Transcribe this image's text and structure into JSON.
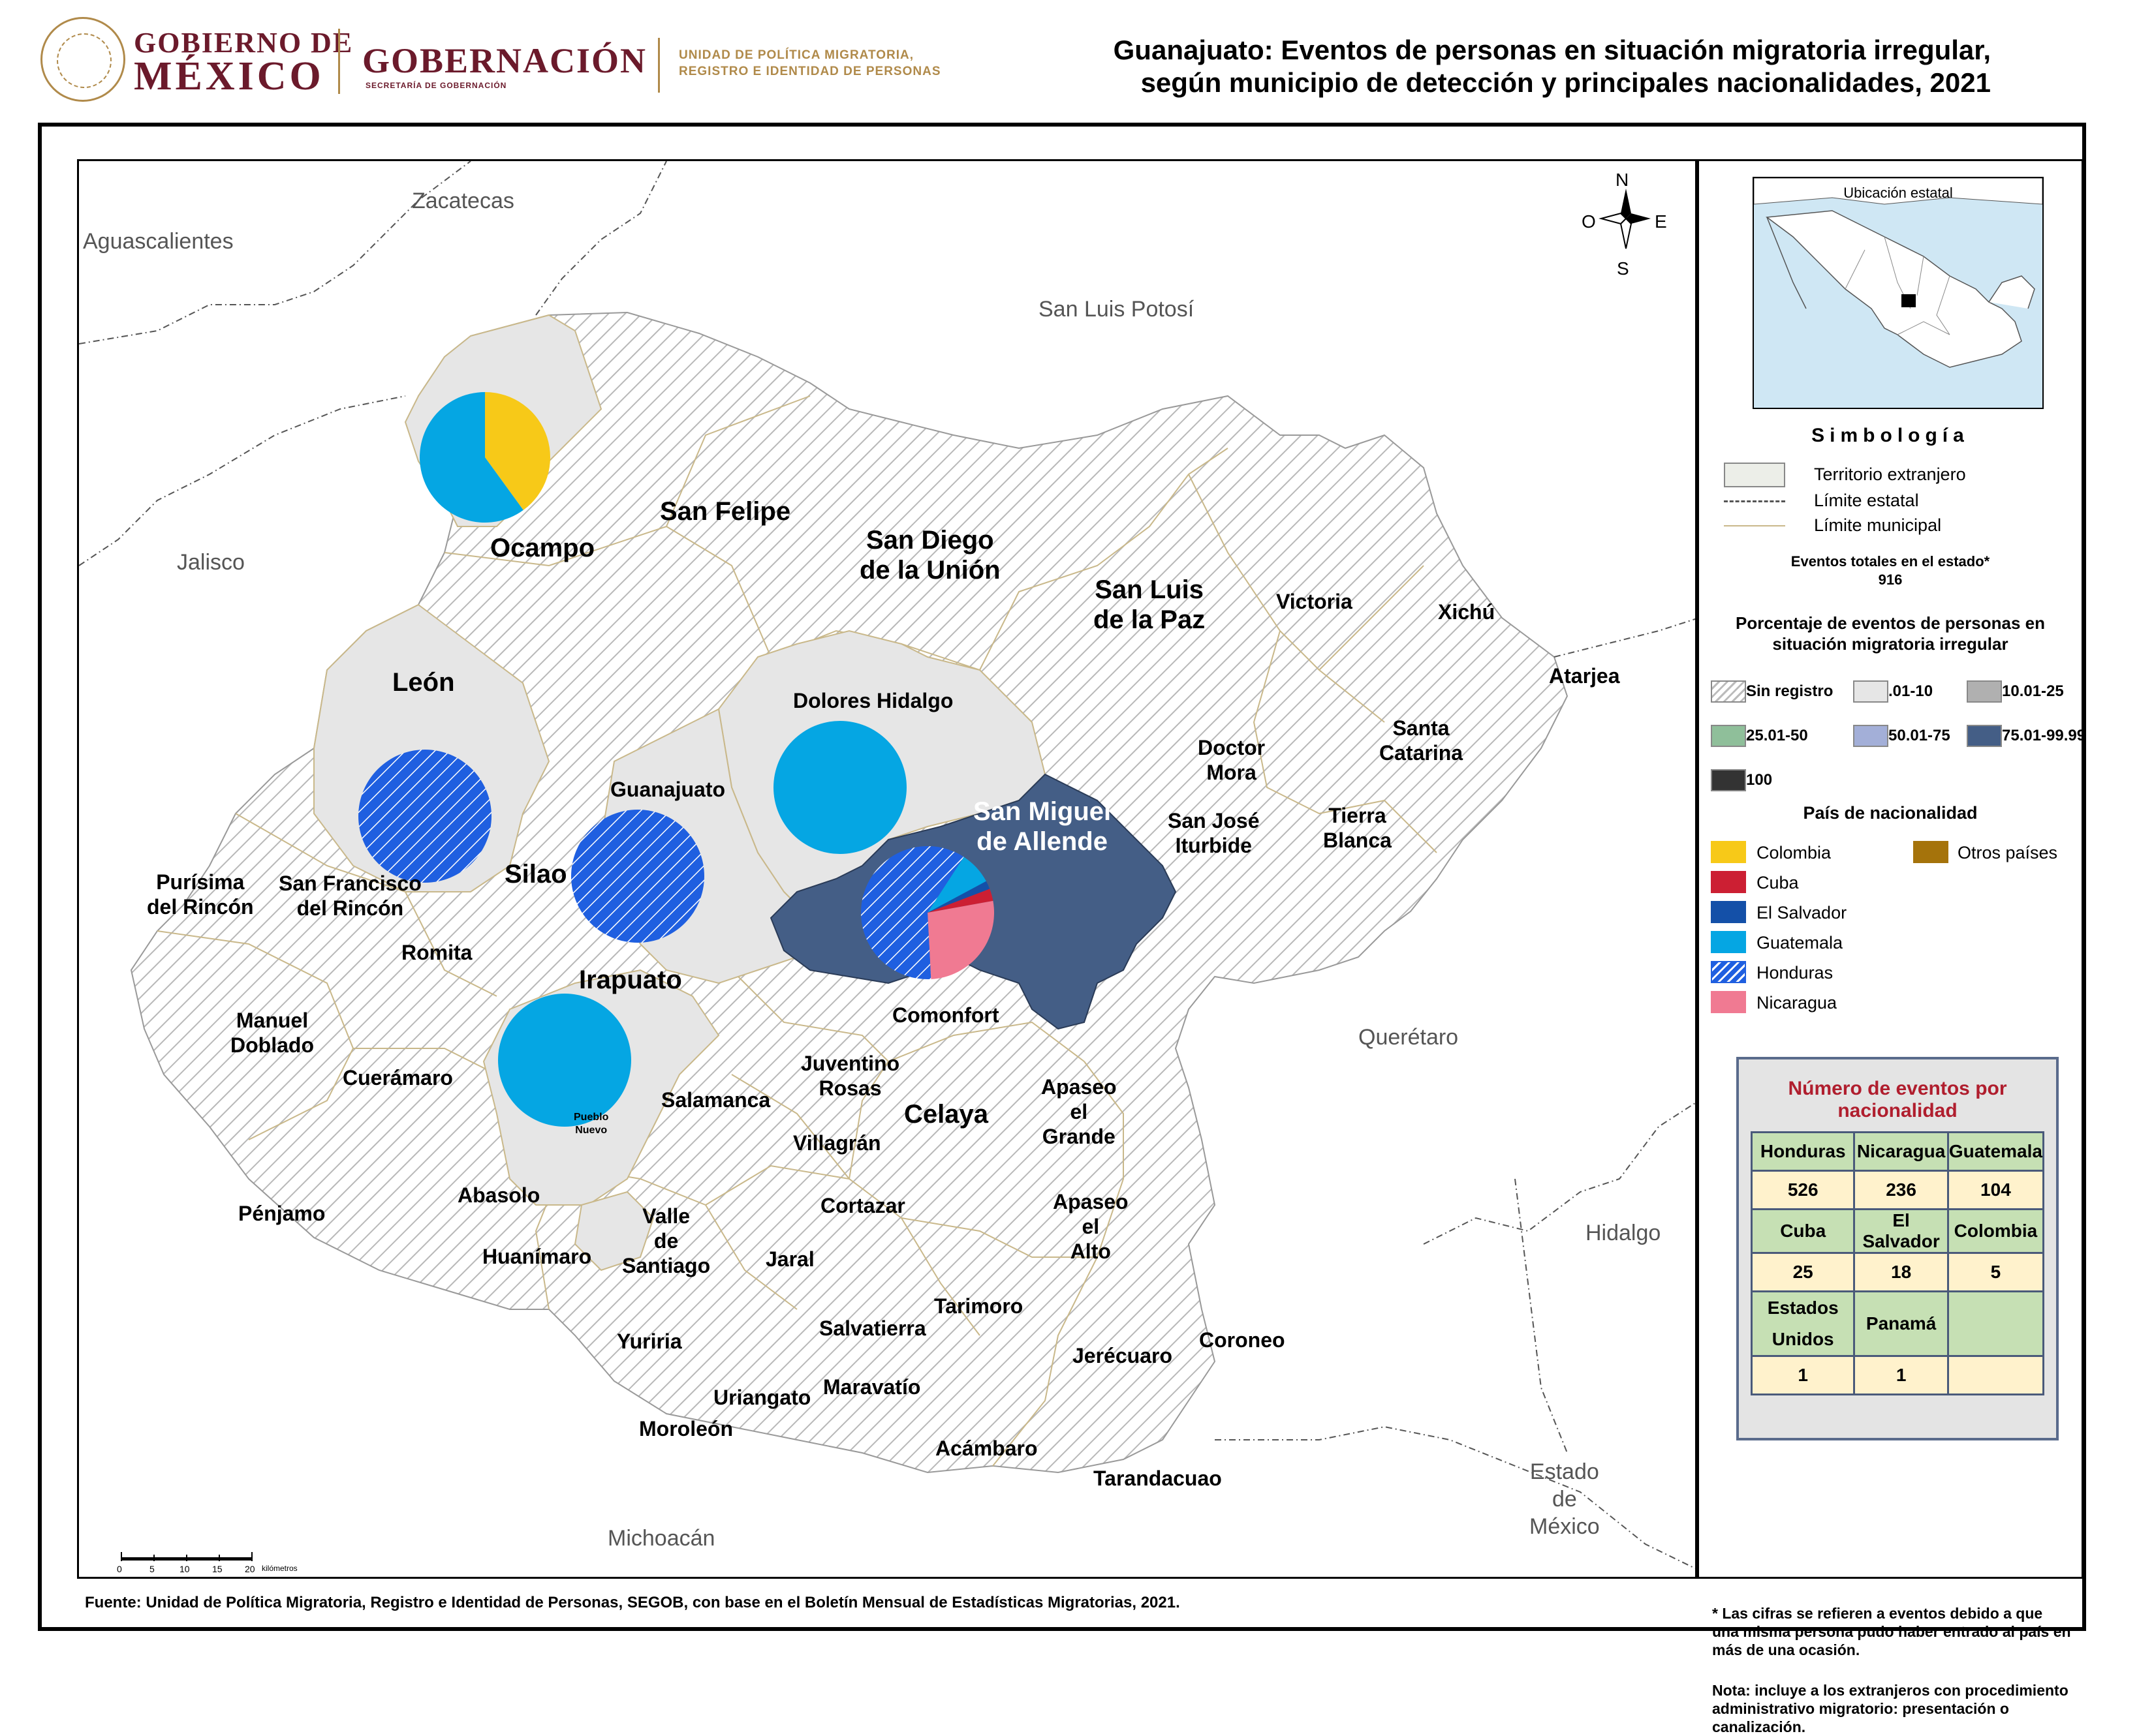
{
  "header": {
    "gob_line1": "GOBIERNO DE",
    "gob_line2": "MÉXICO",
    "gobernacion": "GOBERNACIÓN",
    "gobernacion_sub": "SECRETARÍA DE GOBERNACIÓN",
    "upm_line1": "UNIDAD DE POLÍTICA MIGRATORIA,",
    "upm_line2": "REGISTRO E IDENTIDAD DE PERSONAS",
    "title_line1": "Guanajuato: Eventos de personas en situación migratoria irregular,",
    "title_line2": "según municipio de detección y principales nacionalidades, 2021"
  },
  "compass": {
    "n": "N",
    "s": "S",
    "e": "E",
    "o": "O"
  },
  "states": {
    "zacatecas": "Zacatecas",
    "aguascalientes": "Aguascalientes",
    "slp": "San Luis Potosí",
    "jalisco": "Jalisco",
    "queretaro": "Querétaro",
    "hidalgo": "Hidalgo",
    "michoacan": "Michoacán",
    "edomex1": "Estado",
    "edomex2": "de",
    "edomex3": "México"
  },
  "municipalities": {
    "ocampo": "Ocampo",
    "san_felipe": "San Felipe",
    "sdu1": "San Diego",
    "sdu2": "de la Unión",
    "slpaz1": "San Luis",
    "slpaz2": "de la Paz",
    "victoria": "Victoria",
    "xichu": "Xichú",
    "atarjea": "Atarjea",
    "leon": "León",
    "dolores": "Dolores Hidalgo",
    "guanajuato": "Guanajuato",
    "sma1": "San Miguel",
    "sma2": "de Allende",
    "doctor1": "Doctor",
    "doctor2": "Mora",
    "sc1": "Santa",
    "sc2": "Catarina",
    "sji1": "San José",
    "sji2": "Iturbide",
    "tb1": "Tierra",
    "tb2": "Blanca",
    "purisima1": "Purísima",
    "purisima2": "del Rincón",
    "sfr1": "San Francisco",
    "sfr2": "del Rincón",
    "silao": "Silao",
    "romita": "Romita",
    "irapuato": "Irapuato",
    "md1": "Manuel",
    "md2": "Doblado",
    "cueramaro": "Cuerámaro",
    "comonfort": "Comonfort",
    "jr1": "Juventino",
    "jr2": "Rosas",
    "salamanca": "Salamanca",
    "celaya": "Celaya",
    "ag1": "Apaseo",
    "ag2": "el",
    "ag3": "Grande",
    "villagran": "Villagrán",
    "pueblo1": "Pueblo",
    "pueblo2": "Nuevo",
    "penjamo": "Pénjamo",
    "abasolo": "Abasolo",
    "vs1": "Valle",
    "vs2": "de",
    "vs3": "Santiago",
    "cortazar": "Cortazar",
    "aa1": "Apaseo",
    "aa2": "el",
    "aa3": "Alto",
    "huanimaro": "Huanímaro",
    "jaral": "Jaral",
    "tarimoro": "Tarimoro",
    "yuriria": "Yuriria",
    "salvatierra": "Salvatierra",
    "jerecuaro": "Jerécuaro",
    "coroneo": "Coroneo",
    "uriangato": "Uriangato",
    "maravatio": "Maravatío",
    "moroleon": "Moroleón",
    "acambaro": "Acámbaro",
    "tarandacuao": "Tarandacuao"
  },
  "scale": {
    "ticks": [
      "0",
      "5",
      "10",
      "15",
      "20"
    ],
    "unit": "kilómetros"
  },
  "inset": {
    "title": "Ubicación estatal"
  },
  "legend": {
    "simbologia": "Simbología",
    "territorio": "Territorio extranjero",
    "limite_estatal": "Límite estatal",
    "limite_municipal": "Límite municipal",
    "total_label": "Eventos totales en el estado*",
    "total_value": "916",
    "pct_title1": "Porcentaje de eventos de personas en",
    "pct_title2": "situación migratoria irregular",
    "pct_classes": [
      {
        "label": "Sin registro",
        "color": "hatch"
      },
      {
        "label": ".01-10",
        "color": "#e6e6e6"
      },
      {
        "label": "10.01-25",
        "color": "#b0b0b0"
      },
      {
        "label": "25.01-50",
        "color": "#8fbf9a"
      },
      {
        "label": "50.01-75",
        "color": "#a3afd8"
      },
      {
        "label": "75.01-99.99",
        "color": "#445e86"
      },
      {
        "label": "100",
        "color": "#333333"
      }
    ],
    "nat_title": "País de nacionalidad",
    "nationalities": [
      {
        "label": "Colombia",
        "color": "#f7c918"
      },
      {
        "label": "Cuba",
        "color": "#cc1f33"
      },
      {
        "label": "El Salvador",
        "color": "#1450a8"
      },
      {
        "label": "Guatemala",
        "color": "#05a6e3"
      },
      {
        "label": "Honduras",
        "color": "#1f5fe0"
      },
      {
        "label": "Nicaragua",
        "color": "#f07a92"
      },
      {
        "label": "Otros países",
        "color": "#a5730b"
      }
    ]
  },
  "table": {
    "title": "Número de eventos por nacionalidad",
    "row1_h": [
      "Honduras",
      "Nicaragua",
      "Guatemala"
    ],
    "row1_v": [
      "526",
      "236",
      "104"
    ],
    "row2_h": [
      "Cuba",
      "El Salvador",
      "Colombia"
    ],
    "row2_v": [
      "25",
      "18",
      "5"
    ],
    "row3_h": [
      "Estados Unidos",
      "Panamá",
      ""
    ],
    "row3_v": [
      "1",
      "1",
      ""
    ]
  },
  "notes": {
    "asterisk": "* Las cifras se refieren a eventos debido a que una misma persona pudo haber entrado al país en más de una ocasión.",
    "nota": "Nota: incluye a los extranjeros con procedimiento administrativo migratorio: presentación o canalización."
  },
  "source": "Fuente: Unidad de Política Migratoria, Registro e Identidad de Personas, SEGOB, con base en el Boletín Mensual de Estadísticas Migratorias, 2021.",
  "pies": [
    {
      "municipio": "Ocampo",
      "slices": [
        {
          "nat": "Colombia",
          "pct": 40
        },
        {
          "nat": "Guatemala",
          "pct": 60
        }
      ]
    },
    {
      "municipio": "León",
      "slices": [
        {
          "nat": "Honduras",
          "pct": 100
        }
      ]
    },
    {
      "municipio": "Dolores Hidalgo",
      "slices": [
        {
          "nat": "Guatemala",
          "pct": 100
        }
      ]
    },
    {
      "municipio": "Guanajuato",
      "slices": [
        {
          "nat": "Honduras",
          "pct": 100
        }
      ]
    },
    {
      "municipio": "Irapuato",
      "slices": [
        {
          "nat": "Guatemala",
          "pct": 100
        }
      ]
    },
    {
      "municipio": "San Miguel de Allende",
      "slices": [
        {
          "nat": "Guatemala",
          "pct": 8
        },
        {
          "nat": "El Salvador",
          "pct": 2
        },
        {
          "nat": "Cuba",
          "pct": 3
        },
        {
          "nat": "Nicaragua",
          "pct": 27
        },
        {
          "nat": "Honduras",
          "pct": 60
        }
      ]
    }
  ]
}
